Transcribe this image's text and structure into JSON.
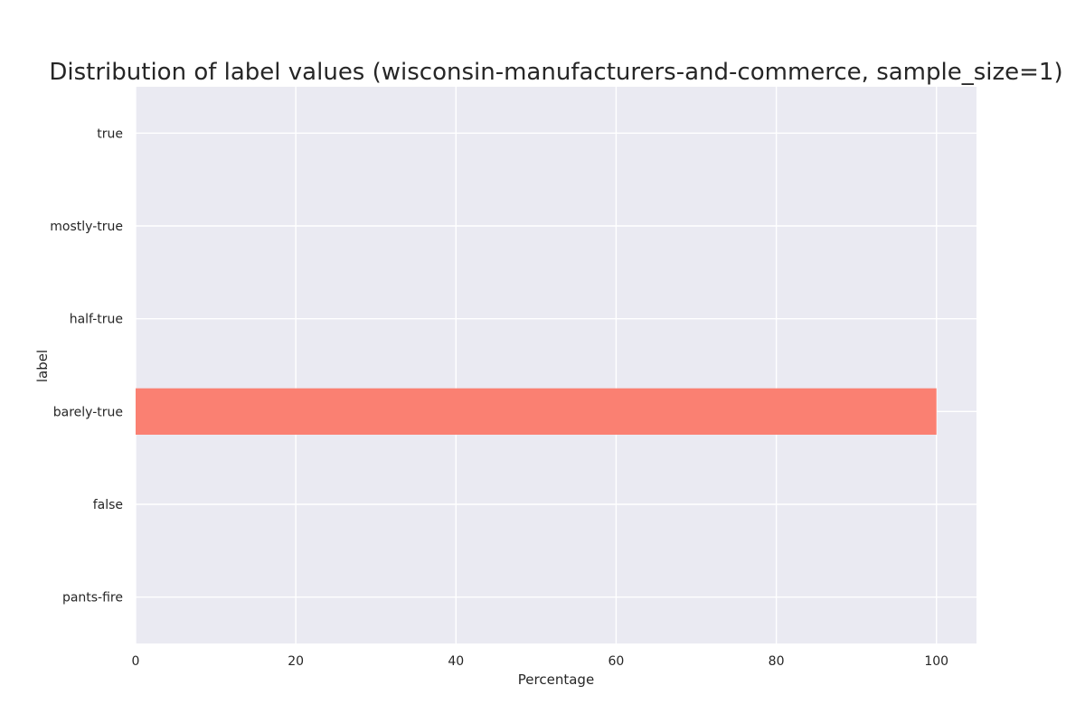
{
  "chart_data": {
    "type": "bar",
    "orientation": "horizontal",
    "title": "Distribution of label values (wisconsin-manufacturers-and-commerce, sample_size=1)",
    "xlabel": "Percentage",
    "ylabel": "label",
    "categories": [
      "true",
      "mostly-true",
      "half-true",
      "barely-true",
      "false",
      "pants-fire"
    ],
    "values": [
      0,
      0,
      0,
      100,
      0,
      0
    ],
    "xlim": [
      0,
      105
    ],
    "xticks": [
      0,
      20,
      40,
      60,
      80,
      100
    ],
    "grid": true,
    "colors": {
      "bar": "#fa8072",
      "plot_background": "#eaeaf2",
      "grid": "#ffffff"
    }
  }
}
